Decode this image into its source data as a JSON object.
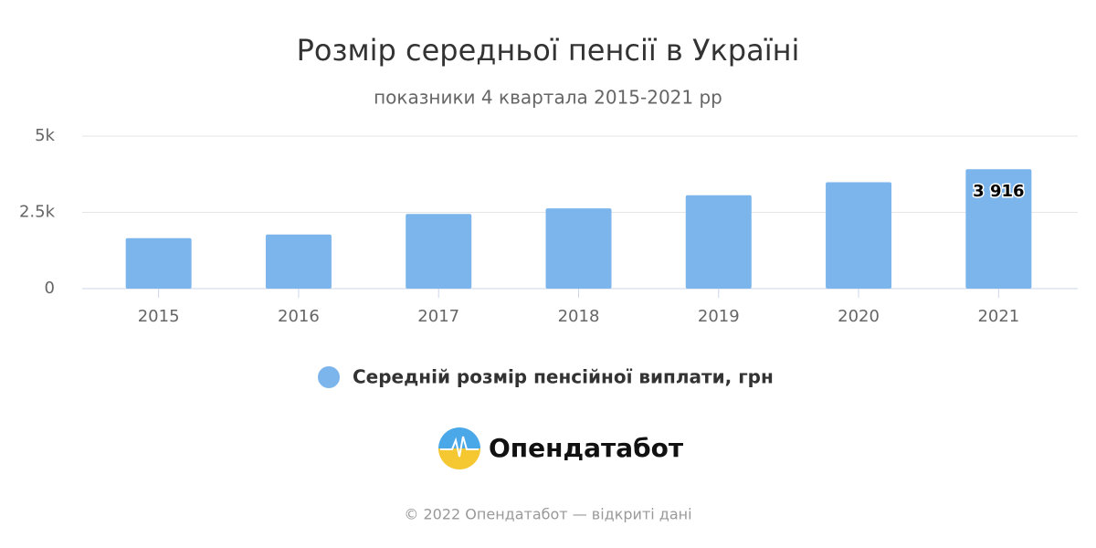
{
  "chart_data": {
    "type": "bar",
    "title": "Розмір середньої пенсії в Україні",
    "subtitle": "показники 4 квартала 2015-2021 рр",
    "categories": [
      "2015",
      "2016",
      "2017",
      "2018",
      "2019",
      "2020",
      "2021"
    ],
    "series": [
      {
        "name": "Середній розмір пенсійної виплати, грн",
        "color": "#7cb5ec",
        "values": [
          1653,
          1775,
          2448,
          2632,
          3060,
          3488,
          3916
        ],
        "value_labels": [
          null,
          null,
          null,
          null,
          null,
          null,
          "3 916"
        ]
      }
    ],
    "ylim": [
      0,
      5000
    ],
    "yticks": [
      0,
      {
        "value": 2500,
        "label": "2.5k"
      },
      {
        "value": 5000,
        "label": "5k"
      }
    ],
    "grid": true
  },
  "logo_text": "Опендатабот",
  "footer": "© 2022 Опендатабот — відкриті дані"
}
